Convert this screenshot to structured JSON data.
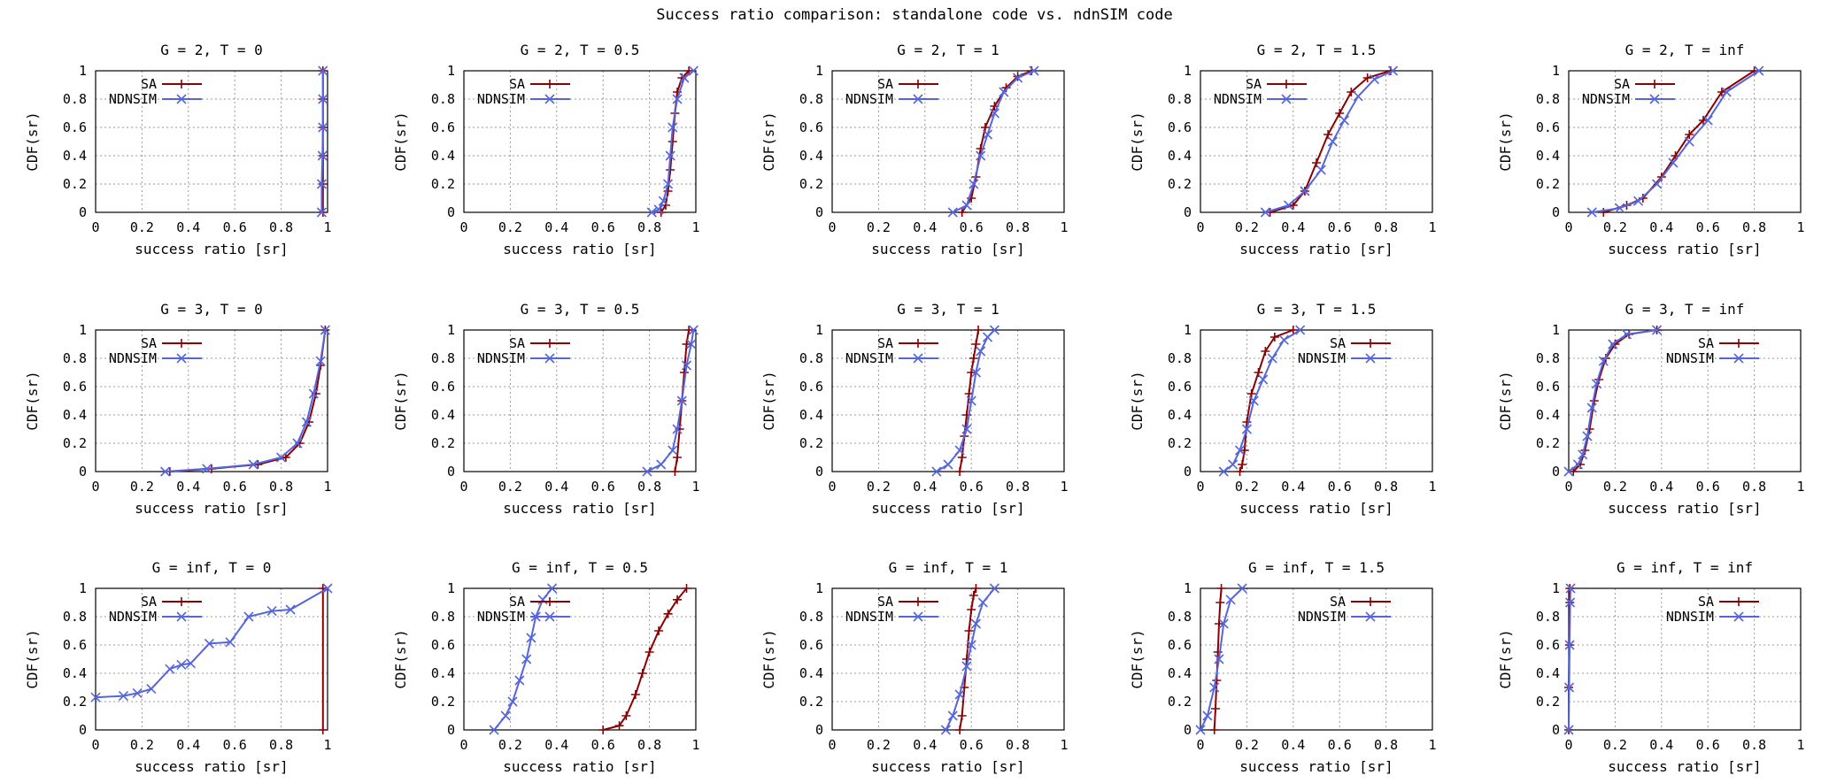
{
  "figure_title": "Success ratio comparison: standalone code vs. ndnSIM code",
  "colors": {
    "sa": "#8b0000",
    "ndnsim": "#5566dd"
  },
  "chart_data": [
    {
      "type": "line",
      "title": "G = 2, T = 0",
      "xlabel": "success ratio [sr]",
      "ylabel": "CDF(sr)",
      "xlim": [
        0,
        1
      ],
      "ylim": [
        0,
        1
      ],
      "xticks": [
        "0",
        "0.2",
        "0.4",
        "0.6",
        "0.8",
        "1"
      ],
      "yticks": [
        "0",
        "0.2",
        "0.4",
        "0.6",
        "0.8",
        "1"
      ],
      "grid": true,
      "legend": "top-left",
      "series": [
        {
          "name": "SA",
          "x": [
            0.98,
            0.98,
            0.98,
            0.98,
            0.98,
            0.98
          ],
          "y": [
            0,
            0.2,
            0.4,
            0.6,
            0.8,
            1.0
          ]
        },
        {
          "name": "NDNSIM",
          "x": [
            0.975,
            0.975,
            0.978,
            0.98,
            0.98,
            0.98
          ],
          "y": [
            0,
            0.2,
            0.4,
            0.6,
            0.8,
            1.0
          ]
        }
      ]
    },
    {
      "type": "line",
      "title": "G = 2, T = 0.5",
      "xlabel": "success ratio [sr]",
      "ylabel": "CDF(sr)",
      "xlim": [
        0,
        1
      ],
      "ylim": [
        0,
        1
      ],
      "xticks": [
        "0",
        "0.2",
        "0.4",
        "0.6",
        "0.8",
        "1"
      ],
      "yticks": [
        "0",
        "0.2",
        "0.4",
        "0.6",
        "0.8",
        "1"
      ],
      "grid": true,
      "legend": "top-left",
      "series": [
        {
          "name": "SA",
          "x": [
            0.85,
            0.87,
            0.88,
            0.89,
            0.9,
            0.91,
            0.92,
            0.94,
            0.97
          ],
          "y": [
            0,
            0.05,
            0.15,
            0.3,
            0.5,
            0.7,
            0.85,
            0.95,
            1.0
          ]
        },
        {
          "name": "NDNSIM",
          "x": [
            0.81,
            0.84,
            0.86,
            0.88,
            0.89,
            0.9,
            0.92,
            0.95,
            0.99
          ],
          "y": [
            0,
            0.02,
            0.08,
            0.2,
            0.4,
            0.6,
            0.8,
            0.95,
            1.0
          ]
        }
      ]
    },
    {
      "type": "line",
      "title": "G = 2, T = 1",
      "xlabel": "success ratio [sr]",
      "ylabel": "CDF(sr)",
      "xlim": [
        0,
        1
      ],
      "ylim": [
        0,
        1
      ],
      "xticks": [
        "0",
        "0.2",
        "0.4",
        "0.6",
        "0.8",
        "1"
      ],
      "yticks": [
        "0",
        "0.2",
        "0.4",
        "0.6",
        "0.8",
        "1"
      ],
      "grid": true,
      "legend": "top-left",
      "series": [
        {
          "name": "SA",
          "x": [
            0.56,
            0.6,
            0.62,
            0.64,
            0.66,
            0.7,
            0.75,
            0.8,
            0.86
          ],
          "y": [
            0,
            0.1,
            0.25,
            0.45,
            0.6,
            0.75,
            0.88,
            0.96,
            1.0
          ]
        },
        {
          "name": "NDNSIM",
          "x": [
            0.52,
            0.58,
            0.61,
            0.64,
            0.67,
            0.7,
            0.74,
            0.8,
            0.87
          ],
          "y": [
            0,
            0.05,
            0.2,
            0.4,
            0.55,
            0.7,
            0.85,
            0.95,
            1.0
          ]
        }
      ]
    },
    {
      "type": "line",
      "title": "G = 2, T = 1.5",
      "xlabel": "success ratio [sr]",
      "ylabel": "CDF(sr)",
      "xlim": [
        0,
        1
      ],
      "ylim": [
        0,
        1
      ],
      "xticks": [
        "0",
        "0.2",
        "0.4",
        "0.6",
        "0.8",
        "1"
      ],
      "yticks": [
        "0",
        "0.2",
        "0.4",
        "0.6",
        "0.8",
        "1"
      ],
      "grid": true,
      "legend": "top-left",
      "series": [
        {
          "name": "SA",
          "x": [
            0.3,
            0.4,
            0.45,
            0.5,
            0.55,
            0.6,
            0.65,
            0.72,
            0.82
          ],
          "y": [
            0,
            0.05,
            0.15,
            0.35,
            0.55,
            0.7,
            0.85,
            0.95,
            1.0
          ]
        },
        {
          "name": "NDNSIM",
          "x": [
            0.28,
            0.38,
            0.45,
            0.52,
            0.57,
            0.62,
            0.68,
            0.75,
            0.83
          ],
          "y": [
            0,
            0.05,
            0.15,
            0.3,
            0.5,
            0.65,
            0.82,
            0.94,
            1.0
          ]
        }
      ]
    },
    {
      "type": "line",
      "title": "G = 2, T = inf",
      "xlabel": "success ratio [sr]",
      "ylabel": "CDF(sr)",
      "xlim": [
        0,
        1
      ],
      "ylim": [
        0,
        1
      ],
      "xticks": [
        "0",
        "0.2",
        "0.4",
        "0.6",
        "0.8",
        "1"
      ],
      "yticks": [
        "0",
        "0.2",
        "0.4",
        "0.6",
        "0.8",
        "1"
      ],
      "grid": true,
      "legend": "top-left",
      "series": [
        {
          "name": "SA",
          "x": [
            0.15,
            0.25,
            0.32,
            0.4,
            0.46,
            0.52,
            0.58,
            0.66,
            0.8
          ],
          "y": [
            0,
            0.05,
            0.1,
            0.25,
            0.4,
            0.55,
            0.65,
            0.85,
            1.0
          ]
        },
        {
          "name": "NDNSIM",
          "x": [
            0.1,
            0.22,
            0.3,
            0.38,
            0.45,
            0.52,
            0.6,
            0.68,
            0.82
          ],
          "y": [
            0,
            0.03,
            0.08,
            0.2,
            0.35,
            0.5,
            0.65,
            0.85,
            1.0
          ]
        }
      ]
    },
    {
      "type": "line",
      "title": "G = 3, T = 0",
      "xlabel": "success ratio [sr]",
      "ylabel": "CDF(sr)",
      "xlim": [
        0,
        1
      ],
      "ylim": [
        0,
        1
      ],
      "xticks": [
        "0",
        "0.2",
        "0.4",
        "0.6",
        "0.8",
        "1"
      ],
      "yticks": [
        "0",
        "0.2",
        "0.4",
        "0.6",
        "0.8",
        "1"
      ],
      "grid": true,
      "legend": "top-left",
      "series": [
        {
          "name": "SA",
          "x": [
            0.32,
            0.5,
            0.7,
            0.82,
            0.88,
            0.92,
            0.95,
            0.97,
            0.99
          ],
          "y": [
            0,
            0.02,
            0.05,
            0.1,
            0.2,
            0.35,
            0.55,
            0.75,
            1.0
          ]
        },
        {
          "name": "NDNSIM",
          "x": [
            0.3,
            0.48,
            0.68,
            0.8,
            0.87,
            0.91,
            0.94,
            0.97,
            0.99
          ],
          "y": [
            0,
            0.02,
            0.05,
            0.1,
            0.2,
            0.35,
            0.55,
            0.78,
            1.0
          ]
        }
      ]
    },
    {
      "type": "line",
      "title": "G = 3, T = 0.5",
      "xlabel": "success ratio [sr]",
      "ylabel": "CDF(sr)",
      "xlim": [
        0,
        1
      ],
      "ylim": [
        0,
        1
      ],
      "xticks": [
        "0",
        "0.2",
        "0.4",
        "0.6",
        "0.8",
        "1"
      ],
      "yticks": [
        "0",
        "0.2",
        "0.4",
        "0.6",
        "0.8",
        "1"
      ],
      "grid": true,
      "legend": "top-left",
      "series": [
        {
          "name": "SA",
          "x": [
            0.91,
            0.92,
            0.93,
            0.94,
            0.95,
            0.96,
            0.97
          ],
          "y": [
            0,
            0.1,
            0.3,
            0.5,
            0.7,
            0.9,
            1.0
          ]
        },
        {
          "name": "NDNSIM",
          "x": [
            0.79,
            0.85,
            0.9,
            0.92,
            0.94,
            0.96,
            0.98,
            0.99
          ],
          "y": [
            0,
            0.05,
            0.15,
            0.3,
            0.5,
            0.75,
            0.9,
            1.0
          ]
        }
      ]
    },
    {
      "type": "line",
      "title": "G = 3, T = 1",
      "xlabel": "success ratio [sr]",
      "ylabel": "CDF(sr)",
      "xlim": [
        0,
        1
      ],
      "ylim": [
        0,
        1
      ],
      "xticks": [
        "0",
        "0.2",
        "0.4",
        "0.6",
        "0.8",
        "1"
      ],
      "yticks": [
        "0",
        "0.2",
        "0.4",
        "0.6",
        "0.8",
        "1"
      ],
      "grid": true,
      "legend": "top-left",
      "series": [
        {
          "name": "SA",
          "x": [
            0.55,
            0.56,
            0.57,
            0.58,
            0.59,
            0.6,
            0.61,
            0.62,
            0.63
          ],
          "y": [
            0,
            0.1,
            0.25,
            0.4,
            0.55,
            0.7,
            0.8,
            0.9,
            1.0
          ]
        },
        {
          "name": "NDNSIM",
          "x": [
            0.45,
            0.5,
            0.55,
            0.58,
            0.6,
            0.62,
            0.64,
            0.67,
            0.7
          ],
          "y": [
            0,
            0.05,
            0.15,
            0.3,
            0.5,
            0.7,
            0.85,
            0.95,
            1.0
          ]
        }
      ]
    },
    {
      "type": "line",
      "title": "G = 3, T = 1.5",
      "xlabel": "success ratio [sr]",
      "ylabel": "CDF(sr)",
      "xlim": [
        0,
        1
      ],
      "ylim": [
        0,
        1
      ],
      "xticks": [
        "0",
        "0.2",
        "0.4",
        "0.6",
        "0.8",
        "1"
      ],
      "yticks": [
        "0",
        "0.2",
        "0.4",
        "0.6",
        "0.8",
        "1"
      ],
      "grid": true,
      "legend": "top-right",
      "series": [
        {
          "name": "SA",
          "x": [
            0.17,
            0.18,
            0.19,
            0.2,
            0.22,
            0.25,
            0.28,
            0.32,
            0.4
          ],
          "y": [
            0,
            0.05,
            0.15,
            0.35,
            0.55,
            0.7,
            0.85,
            0.95,
            1.0
          ]
        },
        {
          "name": "NDNSIM",
          "x": [
            0.1,
            0.14,
            0.17,
            0.2,
            0.23,
            0.27,
            0.31,
            0.36,
            0.43
          ],
          "y": [
            0,
            0.05,
            0.15,
            0.3,
            0.5,
            0.65,
            0.8,
            0.93,
            1.0
          ]
        }
      ]
    },
    {
      "type": "line",
      "title": "G = 3, T = inf",
      "xlabel": "success ratio [sr]",
      "ylabel": "CDF(sr)",
      "xlim": [
        0,
        1
      ],
      "ylim": [
        0,
        1
      ],
      "xticks": [
        "0",
        "0.2",
        "0.4",
        "0.6",
        "0.8",
        "1"
      ],
      "yticks": [
        "0",
        "0.2",
        "0.4",
        "0.6",
        "0.8",
        "1"
      ],
      "grid": true,
      "legend": "top-right",
      "series": [
        {
          "name": "SA",
          "x": [
            0.02,
            0.05,
            0.07,
            0.09,
            0.11,
            0.13,
            0.16,
            0.2,
            0.26,
            0.38
          ],
          "y": [
            0,
            0.05,
            0.15,
            0.3,
            0.5,
            0.65,
            0.8,
            0.9,
            0.97,
            1.0
          ]
        },
        {
          "name": "NDNSIM",
          "x": [
            0.0,
            0.04,
            0.06,
            0.08,
            0.1,
            0.12,
            0.15,
            0.19,
            0.25,
            0.38
          ],
          "y": [
            0,
            0.05,
            0.12,
            0.25,
            0.45,
            0.62,
            0.78,
            0.9,
            0.97,
            1.0
          ]
        }
      ]
    },
    {
      "type": "line",
      "title": "G = inf, T = 0",
      "xlabel": "success ratio [sr]",
      "ylabel": "CDF(sr)",
      "xlim": [
        0,
        1
      ],
      "ylim": [
        0,
        1
      ],
      "xticks": [
        "0",
        "0.2",
        "0.4",
        "0.6",
        "0.8",
        "1"
      ],
      "yticks": [
        "0",
        "0.2",
        "0.4",
        "0.6",
        "0.8",
        "1"
      ],
      "grid": true,
      "legend": "top-left",
      "series": [
        {
          "name": "SA",
          "x": [
            0.98,
            0.98
          ],
          "y": [
            0,
            1.0
          ]
        },
        {
          "name": "NDNSIM",
          "x": [
            0.0,
            0.12,
            0.18,
            0.24,
            0.32,
            0.37,
            0.41,
            0.49,
            0.58,
            0.66,
            0.76,
            0.84,
            1.0
          ],
          "y": [
            0.23,
            0.24,
            0.26,
            0.29,
            0.43,
            0.46,
            0.47,
            0.61,
            0.62,
            0.8,
            0.84,
            0.85,
            1.0
          ]
        }
      ]
    },
    {
      "type": "line",
      "title": "G = inf, T = 0.5",
      "xlabel": "success ratio [sr]",
      "ylabel": "CDF(sr)",
      "xlim": [
        0,
        1
      ],
      "ylim": [
        0,
        1
      ],
      "xticks": [
        "0",
        "0.2",
        "0.4",
        "0.6",
        "0.8",
        "1"
      ],
      "yticks": [
        "0",
        "0.2",
        "0.4",
        "0.6",
        "0.8",
        "1"
      ],
      "grid": true,
      "legend": "top-left",
      "series": [
        {
          "name": "SA",
          "x": [
            0.6,
            0.67,
            0.7,
            0.74,
            0.77,
            0.8,
            0.84,
            0.88,
            0.92,
            0.96
          ],
          "y": [
            0,
            0.03,
            0.1,
            0.25,
            0.4,
            0.55,
            0.7,
            0.82,
            0.92,
            1.0
          ]
        },
        {
          "name": "NDNSIM",
          "x": [
            0.13,
            0.18,
            0.21,
            0.24,
            0.27,
            0.29,
            0.31,
            0.34,
            0.38
          ],
          "y": [
            0,
            0.1,
            0.2,
            0.35,
            0.5,
            0.65,
            0.8,
            0.92,
            1.0
          ]
        }
      ]
    },
    {
      "type": "line",
      "title": "G = inf, T = 1",
      "xlabel": "success ratio [sr]",
      "ylabel": "CDF(sr)",
      "xlim": [
        0,
        1
      ],
      "ylim": [
        0,
        1
      ],
      "xticks": [
        "0",
        "0.2",
        "0.4",
        "0.6",
        "0.8",
        "1"
      ],
      "yticks": [
        "0",
        "0.2",
        "0.4",
        "0.6",
        "0.8",
        "1"
      ],
      "grid": true,
      "legend": "top-left",
      "series": [
        {
          "name": "SA",
          "x": [
            0.55,
            0.56,
            0.57,
            0.58,
            0.59,
            0.6,
            0.61,
            0.62
          ],
          "y": [
            0,
            0.1,
            0.3,
            0.5,
            0.7,
            0.85,
            0.95,
            1.0
          ]
        },
        {
          "name": "NDNSIM",
          "x": [
            0.49,
            0.52,
            0.55,
            0.58,
            0.6,
            0.62,
            0.65,
            0.7
          ],
          "y": [
            0,
            0.1,
            0.25,
            0.45,
            0.6,
            0.75,
            0.9,
            1.0
          ]
        }
      ]
    },
    {
      "type": "line",
      "title": "G = inf, T = 1.5",
      "xlabel": "success ratio [sr]",
      "ylabel": "CDF(sr)",
      "xlim": [
        0,
        1
      ],
      "ylim": [
        0,
        1
      ],
      "xticks": [
        "0",
        "0.2",
        "0.4",
        "0.6",
        "0.8",
        "1"
      ],
      "yticks": [
        "0",
        "0.2",
        "0.4",
        "0.6",
        "0.8",
        "1"
      ],
      "grid": true,
      "legend": "top-right",
      "series": [
        {
          "name": "SA",
          "x": [
            0.06,
            0.065,
            0.07,
            0.075,
            0.08,
            0.085,
            0.09
          ],
          "y": [
            0,
            0.15,
            0.35,
            0.55,
            0.75,
            0.9,
            1.0
          ]
        },
        {
          "name": "NDNSIM",
          "x": [
            0.0,
            0.03,
            0.06,
            0.08,
            0.1,
            0.13,
            0.18
          ],
          "y": [
            0,
            0.1,
            0.3,
            0.5,
            0.75,
            0.92,
            1.0
          ]
        }
      ]
    },
    {
      "type": "line",
      "title": "G = inf, T = inf",
      "xlabel": "success ratio [sr]",
      "ylabel": "CDF(sr)",
      "xlim": [
        0,
        1
      ],
      "ylim": [
        0,
        1
      ],
      "xticks": [
        "0",
        "0.2",
        "0.4",
        "0.6",
        "0.8",
        "1"
      ],
      "yticks": [
        "0",
        "0.2",
        "0.4",
        "0.6",
        "0.8",
        "1"
      ],
      "grid": true,
      "legend": "top-right",
      "series": [
        {
          "name": "SA",
          "x": [
            0.0,
            0.0,
            0.003,
            0.005,
            0.005
          ],
          "y": [
            0,
            0.3,
            0.6,
            0.9,
            1.0
          ]
        },
        {
          "name": "NDNSIM",
          "x": [
            0.0,
            0.002,
            0.004,
            0.006,
            0.008
          ],
          "y": [
            0,
            0.3,
            0.6,
            0.9,
            1.0
          ]
        }
      ]
    }
  ]
}
